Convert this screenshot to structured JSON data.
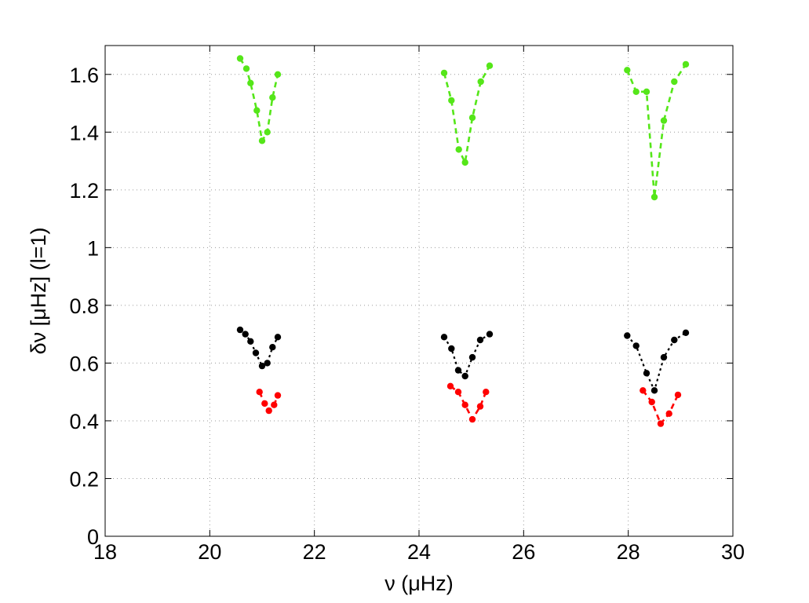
{
  "chart_data": {
    "type": "scatter",
    "title": "",
    "xlabel": "ν (μHz)",
    "ylabel": "δν [μHz] (l=1)",
    "xlim": [
      18,
      30
    ],
    "ylim": [
      0,
      1.7
    ],
    "xticks": [
      18,
      20,
      22,
      24,
      26,
      28,
      30
    ],
    "xtick_labels": [
      "18",
      "20",
      "22",
      "24",
      "26",
      "28",
      "30"
    ],
    "yticks": [
      0,
      0.2,
      0.4,
      0.6,
      0.8,
      1.0,
      1.2,
      1.4,
      1.6
    ],
    "ytick_labels": [
      "0",
      "0.2",
      "0.4",
      "0.6",
      "0.8",
      "1",
      "1.2",
      "1.4",
      "1.6"
    ],
    "grid": true,
    "series": [
      {
        "color": "#55e619",
        "style": "dashed",
        "groups": [
          [
            [
              20.58,
              1.655
            ],
            [
              20.7,
              1.62
            ],
            [
              20.78,
              1.57
            ],
            [
              20.9,
              1.475
            ],
            [
              21.0,
              1.37
            ],
            [
              21.1,
              1.4
            ],
            [
              21.2,
              1.52
            ],
            [
              21.3,
              1.6
            ]
          ],
          [
            [
              24.48,
              1.605
            ],
            [
              24.62,
              1.51
            ],
            [
              24.76,
              1.34
            ],
            [
              24.88,
              1.295
            ],
            [
              25.02,
              1.45
            ],
            [
              25.18,
              1.575
            ],
            [
              25.35,
              1.63
            ]
          ],
          [
            [
              27.98,
              1.615
            ],
            [
              28.15,
              1.54
            ],
            [
              28.35,
              1.54
            ],
            [
              28.5,
              1.175
            ],
            [
              28.68,
              1.44
            ],
            [
              28.88,
              1.575
            ],
            [
              29.1,
              1.635
            ]
          ]
        ]
      },
      {
        "color": "#000000",
        "style": "dotted",
        "groups": [
          [
            [
              20.58,
              0.715
            ],
            [
              20.68,
              0.7
            ],
            [
              20.78,
              0.675
            ],
            [
              20.88,
              0.635
            ],
            [
              21.0,
              0.59
            ],
            [
              21.1,
              0.6
            ],
            [
              21.2,
              0.655
            ],
            [
              21.3,
              0.69
            ]
          ],
          [
            [
              24.48,
              0.69
            ],
            [
              24.62,
              0.65
            ],
            [
              24.75,
              0.575
            ],
            [
              24.88,
              0.555
            ],
            [
              25.02,
              0.62
            ],
            [
              25.17,
              0.68
            ],
            [
              25.35,
              0.7
            ]
          ],
          [
            [
              27.98,
              0.695
            ],
            [
              28.15,
              0.66
            ],
            [
              28.35,
              0.565
            ],
            [
              28.5,
              0.505
            ],
            [
              28.68,
              0.62
            ],
            [
              28.88,
              0.68
            ],
            [
              29.1,
              0.705
            ]
          ]
        ]
      },
      {
        "color": "#ff0000",
        "style": "dashed",
        "groups": [
          [
            [
              20.95,
              0.5
            ],
            [
              21.05,
              0.46
            ],
            [
              21.13,
              0.435
            ],
            [
              21.23,
              0.455
            ],
            [
              21.3,
              0.488
            ]
          ],
          [
            [
              24.6,
              0.52
            ],
            [
              24.75,
              0.5
            ],
            [
              24.88,
              0.455
            ],
            [
              25.02,
              0.405
            ],
            [
              25.17,
              0.45
            ],
            [
              25.28,
              0.5
            ]
          ],
          [
            [
              28.28,
              0.505
            ],
            [
              28.45,
              0.465
            ],
            [
              28.62,
              0.39
            ],
            [
              28.78,
              0.425
            ],
            [
              28.95,
              0.49
            ]
          ]
        ]
      }
    ]
  }
}
